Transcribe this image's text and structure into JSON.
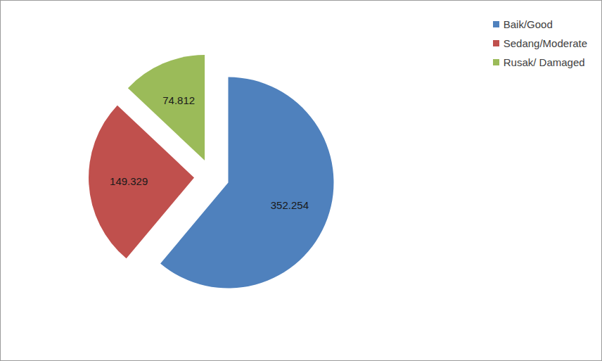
{
  "chart_data": {
    "type": "pie",
    "categories": [
      "Baik/Good",
      "Sedang/Moderate",
      "Rusak/ Damaged"
    ],
    "values": [
      352.254,
      149.329,
      74.812
    ],
    "colors": [
      "#4f81bd",
      "#c0504d",
      "#9bbb59"
    ],
    "data_labels": true,
    "legend": "upper right"
  }
}
